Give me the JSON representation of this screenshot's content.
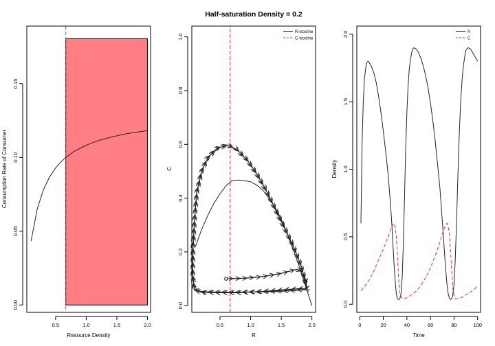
{
  "page": {
    "title": "Half-saturation Density = 0.2"
  },
  "chart_data": [
    {
      "type": "line",
      "panel": "functional-response",
      "xlabel": "Resource Density",
      "ylabel": "Consumption Rate of Consumer",
      "xlim": [
        0.03,
        2.05
      ],
      "ylim": [
        -0.005,
        0.189
      ],
      "xticks": [
        0.5,
        1.0,
        1.5,
        2.0
      ],
      "xtick_labels": [
        "0.5",
        "1.0",
        "1.5",
        "2.0"
      ],
      "yticks": [
        0.0,
        0.05,
        0.1,
        0.15
      ],
      "ytick_labels": [
        "0.00",
        "0.05",
        "0.10",
        "0.15"
      ],
      "curve": {
        "x": [
          0.1,
          0.2,
          0.3,
          0.4,
          0.5,
          0.6,
          0.666,
          0.8,
          1.0,
          1.2,
          1.4,
          1.6,
          1.8,
          2.0
        ],
        "y": [
          0.0433,
          0.065,
          0.078,
          0.0867,
          0.0929,
          0.0975,
          0.1,
          0.104,
          0.1083,
          0.1114,
          0.1137,
          0.1156,
          0.117,
          0.1182
        ]
      },
      "shaded_region": {
        "x": [
          0.666,
          2.0
        ],
        "y": [
          0.0,
          0.1805
        ],
        "color": "#ff7f84"
      },
      "vline": {
        "x": 0.666,
        "color": "#e8323c",
        "style": "dashed"
      },
      "grid": false
    },
    {
      "type": "line",
      "panel": "phase-plane",
      "xlabel": "R",
      "ylabel": "C",
      "xlim": [
        0.04,
        2.06
      ],
      "ylim": [
        -0.025,
        1.04
      ],
      "xticks": [
        0.5,
        1.0,
        1.5,
        2.0
      ],
      "xtick_labels": [
        "0.5",
        "1.0",
        "1.5",
        "2.0"
      ],
      "yticks": [
        0.0,
        0.2,
        0.4,
        0.6,
        0.8,
        1.0
      ],
      "ytick_labels": [
        "0.0",
        "0.2",
        "0.4",
        "0.6",
        "0.8",
        "1.0"
      ],
      "legend": {
        "position": "top-right",
        "entries": [
          "R-isocline",
          "C-isocline"
        ]
      },
      "series": [
        {
          "name": "R-isocline",
          "color": "#222222",
          "style": "solid",
          "x": [
            0.1,
            0.2,
            0.3,
            0.4,
            0.5,
            0.6,
            0.7,
            0.8,
            0.9,
            1.0,
            1.1,
            1.2,
            1.3,
            1.4,
            1.5,
            1.6,
            1.7,
            1.8,
            1.9,
            2.0
          ],
          "y": [
            0.2193,
            0.2832,
            0.336,
            0.38,
            0.4166,
            0.446,
            0.4656,
            0.4672,
            0.4652,
            0.4608,
            0.4486,
            0.429,
            0.4004,
            0.3654,
            0.322,
            0.2672,
            0.2056,
            0.1424,
            0.0707,
            0.0
          ]
        },
        {
          "name": "C-isocline",
          "color": "#ff2a2a",
          "style": "dashed",
          "x": [
            0.666,
            0.666
          ],
          "y": [
            -0.025,
            1.04
          ]
        }
      ],
      "trajectory": {
        "color": "#222222",
        "start": [
          0.6,
          0.1
        ],
        "points": [
          [
            0.6,
            0.1
          ],
          [
            0.9,
            0.102
          ],
          [
            1.2,
            0.108
          ],
          [
            1.5,
            0.12
          ],
          [
            1.75,
            0.135
          ],
          [
            1.85,
            0.125
          ],
          [
            1.9,
            0.095
          ],
          [
            1.92,
            0.065
          ],
          [
            1.6,
            0.06
          ],
          [
            1.2,
            0.053
          ],
          [
            0.8,
            0.048
          ],
          [
            0.45,
            0.048
          ],
          [
            0.2,
            0.05
          ],
          [
            0.08,
            0.058
          ],
          [
            0.055,
            0.12
          ],
          [
            0.06,
            0.22
          ],
          [
            0.085,
            0.32
          ],
          [
            0.12,
            0.42
          ],
          [
            0.2,
            0.5
          ],
          [
            0.3,
            0.55
          ],
          [
            0.45,
            0.585
          ],
          [
            0.62,
            0.598
          ],
          [
            0.78,
            0.58
          ],
          [
            0.95,
            0.54
          ],
          [
            1.1,
            0.49
          ],
          [
            1.25,
            0.43
          ],
          [
            1.4,
            0.36
          ],
          [
            1.55,
            0.29
          ],
          [
            1.7,
            0.22
          ],
          [
            1.82,
            0.15
          ],
          [
            1.88,
            0.1
          ],
          [
            1.91,
            0.07
          ],
          [
            1.88,
            0.06
          ],
          [
            1.6,
            0.055
          ],
          [
            1.2,
            0.052
          ],
          [
            0.8,
            0.05
          ],
          [
            0.45,
            0.05
          ],
          [
            0.2,
            0.052
          ],
          [
            0.08,
            0.06
          ],
          [
            0.055,
            0.12
          ],
          [
            0.06,
            0.22
          ],
          [
            0.085,
            0.32
          ],
          [
            0.12,
            0.42
          ],
          [
            0.2,
            0.5
          ],
          [
            0.3,
            0.55
          ],
          [
            0.45,
            0.585
          ],
          [
            0.62,
            0.598
          ],
          [
            0.78,
            0.58
          ],
          [
            0.95,
            0.54
          ],
          [
            1.1,
            0.49
          ],
          [
            1.25,
            0.43
          ],
          [
            1.4,
            0.36
          ],
          [
            1.55,
            0.29
          ],
          [
            1.7,
            0.22
          ],
          [
            1.82,
            0.15
          ],
          [
            1.88,
            0.1
          ],
          [
            1.91,
            0.07
          ],
          [
            1.89,
            0.06
          ]
        ]
      },
      "grid": false
    },
    {
      "type": "line",
      "panel": "time-series",
      "xlabel": "Time",
      "ylabel": "Density",
      "xlim": [
        -2.5,
        102.5
      ],
      "ylim": [
        -0.06,
        2.06
      ],
      "xticks": [
        0,
        20,
        40,
        60,
        80,
        100
      ],
      "xtick_labels": [
        "0",
        "20",
        "40",
        "60",
        "80",
        "100"
      ],
      "yticks": [
        0.0,
        0.5,
        1.0,
        1.5,
        2.0
      ],
      "ytick_labels": [
        "0.0",
        "0.5",
        "1.0",
        "1.5",
        "2.0"
      ],
      "legend": {
        "position": "top-right",
        "entries": [
          "R",
          "C"
        ]
      },
      "series": [
        {
          "name": "R",
          "color": "#222222",
          "style": "solid",
          "x": [
            1,
            2,
            3,
            4,
            5,
            6,
            7,
            8,
            10,
            12,
            14,
            16,
            18,
            20,
            22,
            24,
            26,
            27,
            28,
            29,
            30,
            31,
            32,
            33,
            34,
            35,
            36,
            37,
            38,
            39,
            40,
            41,
            42,
            43,
            44,
            45,
            46,
            48,
            50,
            52,
            54,
            56,
            58,
            60,
            62,
            64,
            66,
            68,
            70,
            71,
            72,
            73,
            74,
            75,
            76,
            77,
            78,
            79,
            80,
            81,
            82,
            83,
            84,
            85,
            86,
            87,
            88,
            89,
            90,
            92,
            94,
            96,
            98,
            100
          ],
          "y": [
            0.6,
            1.2,
            1.5,
            1.67,
            1.75,
            1.79,
            1.8,
            1.79,
            1.76,
            1.71,
            1.64,
            1.54,
            1.42,
            1.28,
            1.13,
            0.97,
            0.75,
            0.62,
            0.47,
            0.31,
            0.18,
            0.08,
            0.04,
            0.035,
            0.04,
            0.08,
            0.2,
            0.45,
            0.8,
            1.15,
            1.43,
            1.62,
            1.74,
            1.81,
            1.86,
            1.89,
            1.9,
            1.89,
            1.86,
            1.82,
            1.76,
            1.69,
            1.6,
            1.49,
            1.36,
            1.21,
            1.04,
            0.86,
            0.62,
            0.5,
            0.37,
            0.25,
            0.15,
            0.08,
            0.045,
            0.035,
            0.04,
            0.07,
            0.15,
            0.32,
            0.58,
            0.88,
            1.16,
            1.38,
            1.55,
            1.68,
            1.77,
            1.83,
            1.88,
            1.9,
            1.89,
            1.86,
            1.83,
            1.8
          ]
        },
        {
          "name": "C",
          "color": "#ff2a2a",
          "style": "dashed",
          "x": [
            1,
            4,
            8,
            12,
            16,
            20,
            24,
            26,
            28,
            29,
            30,
            31,
            32,
            33,
            34,
            35,
            36,
            38,
            40,
            44,
            48,
            52,
            56,
            60,
            64,
            68,
            70,
            72,
            74,
            75,
            76,
            77,
            78,
            79,
            80,
            81,
            82,
            84,
            86,
            90,
            94,
            98,
            100
          ],
          "y": [
            0.1,
            0.13,
            0.18,
            0.25,
            0.33,
            0.41,
            0.5,
            0.55,
            0.59,
            0.6,
            0.58,
            0.5,
            0.36,
            0.18,
            0.08,
            0.055,
            0.045,
            0.04,
            0.05,
            0.07,
            0.1,
            0.14,
            0.2,
            0.27,
            0.36,
            0.46,
            0.52,
            0.57,
            0.6,
            0.58,
            0.52,
            0.4,
            0.25,
            0.12,
            0.06,
            0.045,
            0.04,
            0.04,
            0.05,
            0.07,
            0.09,
            0.12,
            0.14
          ]
        }
      ],
      "grid": false
    }
  ]
}
